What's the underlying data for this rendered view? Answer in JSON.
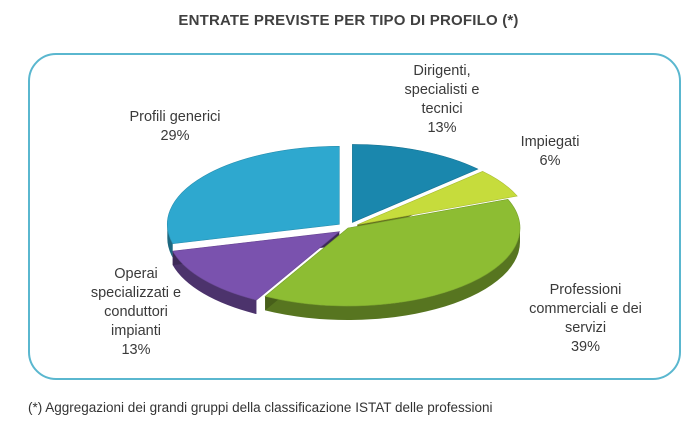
{
  "title": "ENTRATE PREVISTE PER TIPO DI PROFILO (*)",
  "footnote": "(*) Aggregazioni dei grandi gruppi della classificazione ISTAT delle professioni",
  "chart_data": {
    "type": "pie",
    "title": "ENTRATE PREVISTE PER TIPO DI PROFILO (*)",
    "style": "3d-exploded",
    "slices": [
      {
        "label_lines": [
          "Dirigenti,",
          "specialisti e",
          "tecnici"
        ],
        "percent": 13,
        "percent_label": "13%",
        "color": "#1a87ad"
      },
      {
        "label_lines": [
          "Impiegati"
        ],
        "percent": 6,
        "percent_label": "6%",
        "color": "#c6dc3c"
      },
      {
        "label_lines": [
          "Professioni",
          "commerciali e dei",
          "servizi"
        ],
        "percent": 39,
        "percent_label": "39%",
        "color": "#8dbd33"
      },
      {
        "label_lines": [
          "Operai",
          "specializzati e",
          "conduttori",
          "impianti"
        ],
        "percent": 13,
        "percent_label": "13%",
        "color": "#7a52ae"
      },
      {
        "label_lines": [
          "Profili generici"
        ],
        "percent": 29,
        "percent_label": "29%",
        "color": "#2ea8cf"
      }
    ]
  }
}
